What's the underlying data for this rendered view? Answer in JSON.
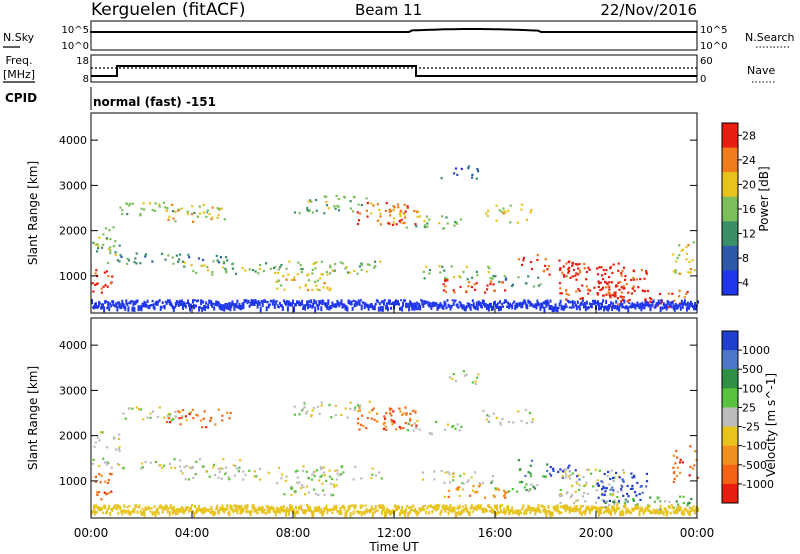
{
  "header": {
    "title": "Kerguelen (fitACF)",
    "beam": "Beam 11",
    "date": "22/Nov/2016"
  },
  "info_panels": {
    "nsky_label": "N.Sky",
    "nsearch_label": "N.Search",
    "freq_label_line1": "Freq.",
    "freq_label_line2": "[MHz]",
    "nave_label": "Nave",
    "cpid_label": "CPID",
    "cpid_value": "normal (fast) -151",
    "nsky_ticks": [
      "10^5",
      "10^0"
    ],
    "nsearch_ticks": [
      "10^5",
      "10^0"
    ],
    "freq_ticks": [
      "18",
      "8"
    ],
    "nave_ticks": [
      "60",
      "0"
    ]
  },
  "chart_data": [
    {
      "type": "heatmap",
      "name": "power",
      "ylabel": "Slant Range [km]",
      "xlabel": "",
      "ylim": [
        180,
        4600
      ],
      "yticks": [
        "1000",
        "2000",
        "3000",
        "4000"
      ],
      "colorbar_label": "Power [dB]",
      "colorbar_ticks": [
        "4",
        "8",
        "12",
        "16",
        "20",
        "24",
        "28"
      ],
      "colors": [
        "#1f37e8",
        "#2e58a8",
        "#3a8f66",
        "#7bbf5a",
        "#e8c31e",
        "#f07b1b",
        "#e81e10"
      ],
      "time_ticks": [
        "00:00",
        "04:00",
        "08:00",
        "12:00",
        "16:00",
        "20:00",
        "00:00"
      ]
    },
    {
      "type": "heatmap",
      "name": "velocity",
      "ylabel": "Slant Range [km]",
      "xlabel": "Time UT",
      "ylim": [
        180,
        4600
      ],
      "yticks": [
        "1000",
        "2000",
        "3000",
        "4000"
      ],
      "colorbar_label": "Velocity [m s^-1]",
      "colorbar_ticks": [
        "1000",
        "500",
        "100",
        "25",
        "-25",
        "-100",
        "-500",
        "-1000"
      ],
      "colors": [
        "#1f3fcc",
        "#4f77c9",
        "#2f8f43",
        "#59c23e",
        "#bcbcbc",
        "#e8c31e",
        "#f0901e",
        "#f26315",
        "#e81e10"
      ],
      "time_ticks": [
        "00:00",
        "04:00",
        "08:00",
        "12:00",
        "16:00",
        "20:00",
        "00:00"
      ]
    }
  ]
}
